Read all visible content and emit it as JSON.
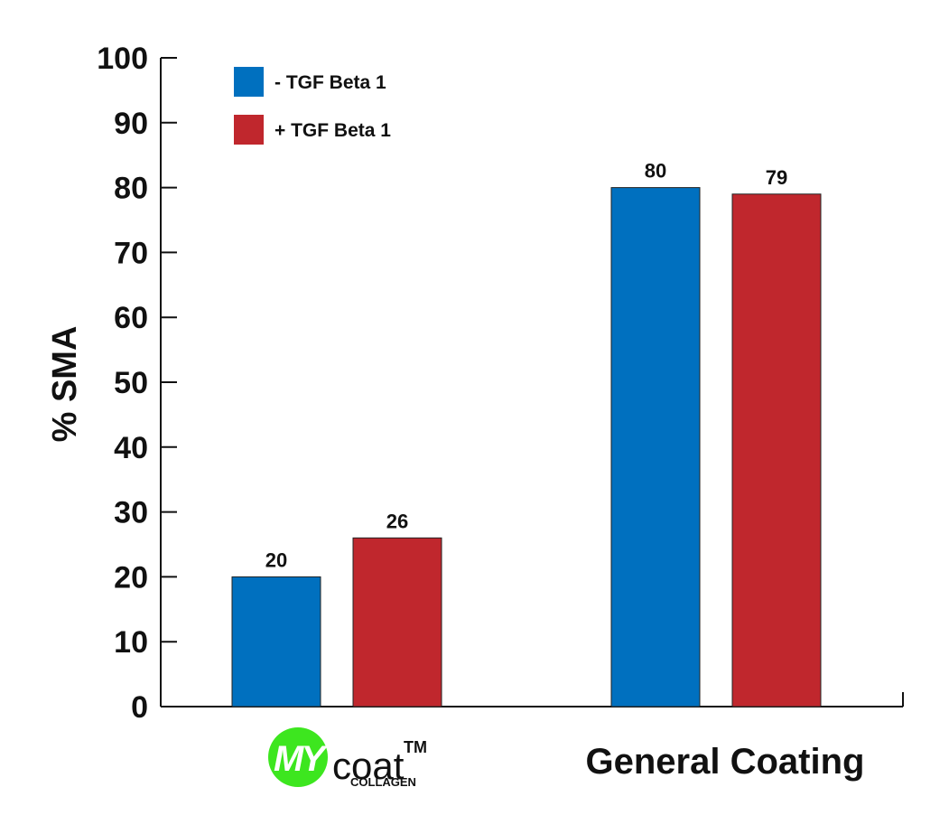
{
  "chart_data": {
    "type": "bar",
    "categories": [
      "MYcoat™ COLLAGEN",
      "General Coating"
    ],
    "series": [
      {
        "name": "- TGF Beta 1",
        "color": "#0070BF",
        "values": [
          20,
          80
        ]
      },
      {
        "name": "+ TGF Beta 1",
        "color": "#C0272D",
        "values": [
          26,
          79
        ]
      }
    ],
    "ylabel": "% SMA",
    "ylim": [
      0,
      100
    ],
    "yticks": [
      0,
      10,
      20,
      30,
      40,
      50,
      60,
      70,
      80,
      90,
      100
    ],
    "data_labels": true,
    "legend_position": "top-left",
    "grid": false
  },
  "logo": {
    "badge_text": "MY",
    "word": "coat",
    "trademark": "TM",
    "sub": "COLLAGEN",
    "badge_color": "#3DE61F"
  }
}
